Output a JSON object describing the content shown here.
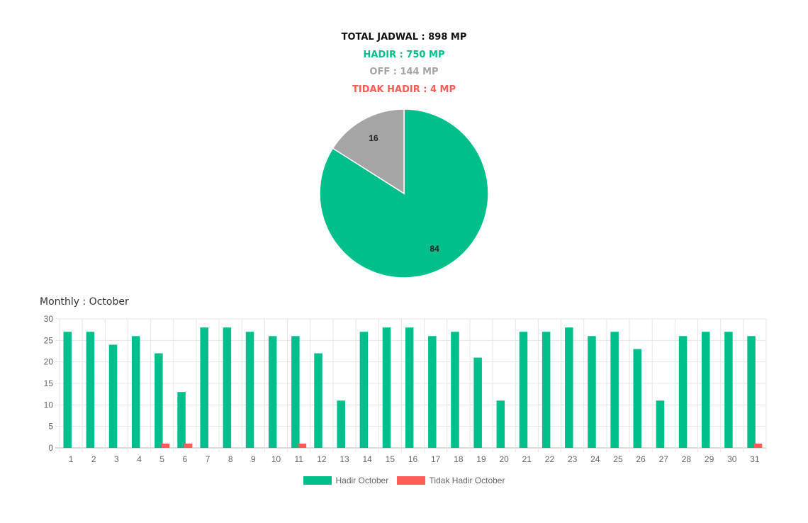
{
  "summary": {
    "total": "TOTAL JADWAL : 898 MP",
    "hadir": "HADIR : 750 MP",
    "off": "OFF : 144 MP",
    "tidak_hadir": "TIDAK HADIR : 4 MP"
  },
  "colors": {
    "total": "#111111",
    "hadir": "#00bf8b",
    "off": "#a5a5a5",
    "tidak_hadir": "#ff5b57"
  },
  "monthly_title": "Monthly : October",
  "chart_data": [
    {
      "type": "pie",
      "categories": [
        "Hadir",
        "Off"
      ],
      "values": [
        84,
        16
      ],
      "colors": [
        "#00bf8b",
        "#a5a5a5"
      ],
      "labels": [
        "84",
        "16"
      ]
    },
    {
      "type": "bar",
      "categories": [
        "1",
        "2",
        "3",
        "4",
        "5",
        "6",
        "7",
        "8",
        "9",
        "10",
        "11",
        "12",
        "13",
        "14",
        "15",
        "16",
        "17",
        "18",
        "19",
        "20",
        "21",
        "22",
        "23",
        "24",
        "25",
        "26",
        "27",
        "28",
        "29",
        "30",
        "31"
      ],
      "series": [
        {
          "name": "Hadir October",
          "color": "#00bf8b",
          "values": [
            27,
            27,
            24,
            26,
            22,
            13,
            28,
            28,
            27,
            26,
            26,
            22,
            11,
            27,
            28,
            28,
            26,
            27,
            21,
            11,
            27,
            27,
            28,
            26,
            27,
            23,
            11,
            26,
            27,
            27,
            26
          ]
        },
        {
          "name": "Tidak Hadir October",
          "color": "#ff5b57",
          "values": [
            0,
            0,
            0,
            0,
            1,
            1,
            0,
            0,
            0,
            0,
            1,
            0,
            0,
            0,
            0,
            0,
            0,
            0,
            0,
            0,
            0,
            0,
            0,
            0,
            0,
            0,
            0,
            0,
            0,
            0,
            1
          ]
        }
      ],
      "ylim": [
        0,
        30
      ],
      "yticks": [
        "0",
        "5",
        "10",
        "15",
        "20",
        "25",
        "30"
      ],
      "grid": true,
      "legend": "bottom"
    }
  ]
}
